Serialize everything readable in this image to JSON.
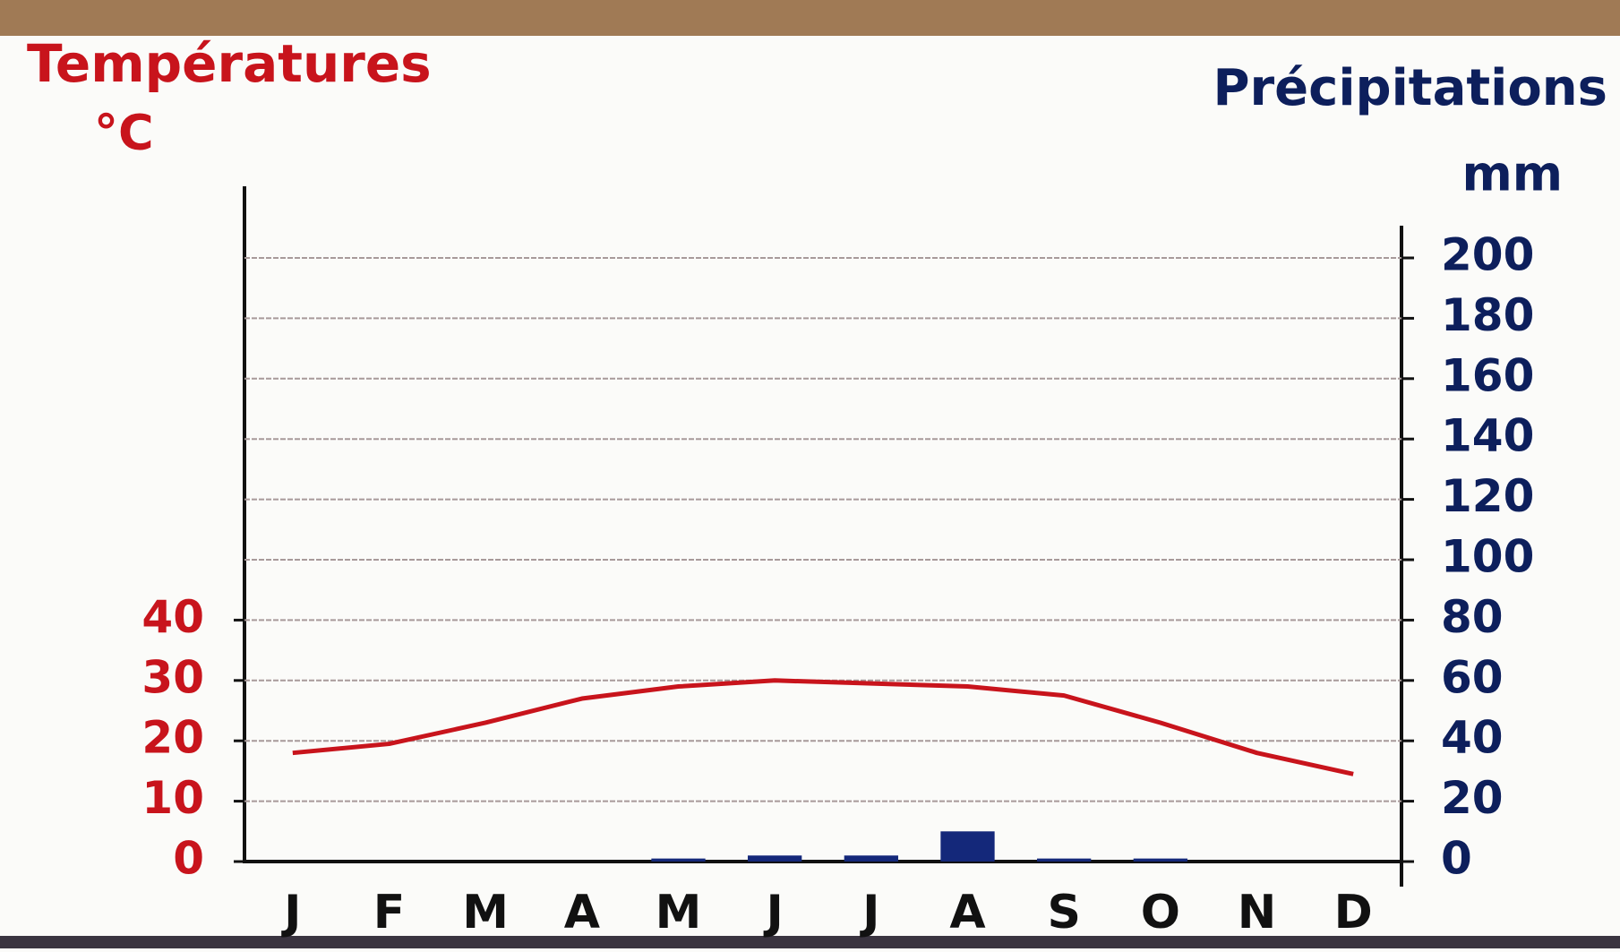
{
  "chart_data": {
    "type": "climate",
    "title_left": "Températures",
    "unit_left": "°C",
    "title_right": "Précipitations",
    "unit_right": "mm",
    "categories": [
      "J",
      "F",
      "M",
      "A",
      "M",
      "J",
      "J",
      "A",
      "S",
      "O",
      "N",
      "D"
    ],
    "series": [
      {
        "name": "Températures",
        "type": "line",
        "color": "#c8141c",
        "values": [
          18,
          19.5,
          23,
          27,
          29,
          30,
          29.5,
          29,
          27.5,
          23,
          18,
          14.5
        ]
      },
      {
        "name": "Précipitations",
        "type": "bar",
        "axis": "y2",
        "color": "#14287a",
        "values": [
          0,
          0,
          0,
          0,
          1,
          2,
          2,
          10,
          1,
          1,
          0,
          0
        ]
      }
    ],
    "ylim": [
      0,
      100
    ],
    "yticks": [
      0,
      10,
      20,
      30,
      40
    ],
    "y2lim": [
      0,
      200
    ],
    "y2ticks": [
      0,
      20,
      40,
      60,
      80,
      100,
      120,
      140,
      160,
      180,
      200
    ],
    "grid": true
  }
}
